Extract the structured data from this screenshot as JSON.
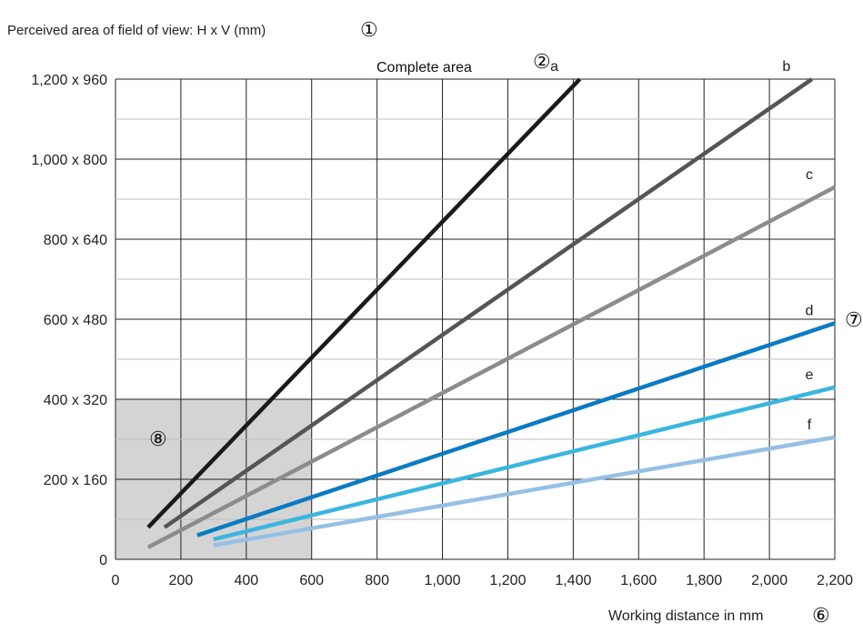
{
  "chart_data": {
    "type": "line",
    "ylabel": "Perceived area of field of view: H x V (mm)",
    "ylabel_marker": "①",
    "xlabel": "Working distance in mm",
    "xlabel_marker": "⑥",
    "annotation": "Complete area",
    "annotation_marker": "②",
    "right_marker": "⑦",
    "region_marker": "⑧",
    "highlight_region": {
      "x": [
        0,
        600
      ],
      "y": [
        0,
        400
      ],
      "color": "#d4d4d4"
    },
    "xlim": [
      0,
      2200
    ],
    "ylim": [
      0,
      1200
    ],
    "grid": true,
    "x_ticks": [
      0,
      200,
      400,
      600,
      800,
      1000,
      1200,
      1400,
      1600,
      1800,
      2000,
      2200
    ],
    "x_tick_labels": [
      "0",
      "200",
      "400",
      "600",
      "800",
      "1,000",
      "1,200",
      "1,400",
      "1,600",
      "1,800",
      "2,000",
      "2,200"
    ],
    "y_ticks": [
      0,
      200,
      400,
      600,
      800,
      1000,
      1200
    ],
    "y_tick_labels": [
      "0",
      "200 x 160",
      "400 x 320",
      "600 x 480",
      "800 x 640",
      "1,000 x 800",
      "1,200 x 960"
    ],
    "series": [
      {
        "name": "a",
        "color": "#1a1a1a",
        "x": [
          100,
          1420
        ],
        "y": [
          80,
          1200
        ]
      },
      {
        "name": "b",
        "color": "#555555",
        "x": [
          150,
          2130
        ],
        "y": [
          80,
          1200
        ]
      },
      {
        "name": "c",
        "color": "#8c8c8c",
        "x": [
          100,
          2200
        ],
        "y": [
          30,
          930
        ]
      },
      {
        "name": "d",
        "color": "#0a7bc1",
        "x": [
          250,
          2200
        ],
        "y": [
          60,
          590
        ]
      },
      {
        "name": "e",
        "color": "#3ab5e0",
        "x": [
          300,
          2200
        ],
        "y": [
          50,
          430
        ]
      },
      {
        "name": "f",
        "color": "#95c0e5",
        "x": [
          300,
          2200
        ],
        "y": [
          35,
          305
        ]
      }
    ]
  }
}
